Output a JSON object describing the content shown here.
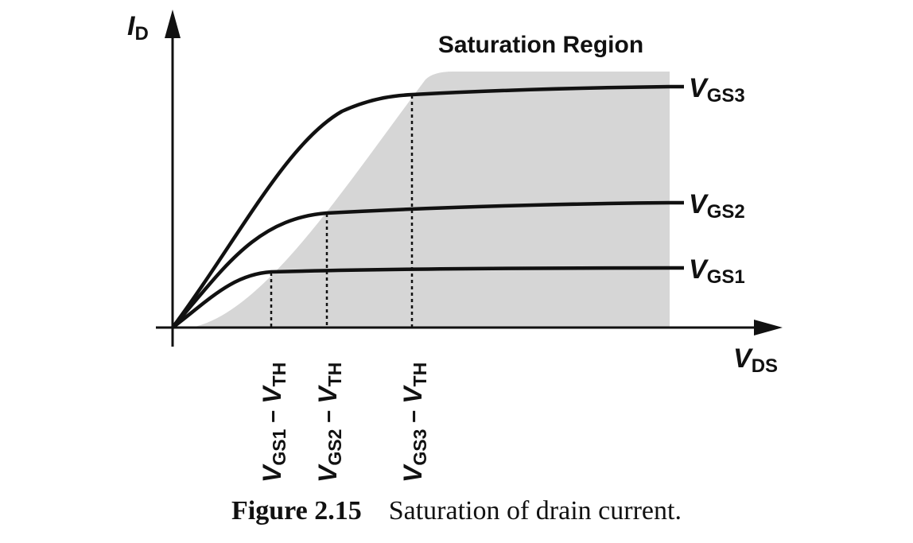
{
  "diagram": {
    "region_label": "Saturation Region",
    "axis_y": {
      "symbol": "I",
      "subscript": "D"
    },
    "axis_x": {
      "symbol": "V",
      "subscript": "DS"
    },
    "curves": [
      {
        "symbol": "V",
        "subscript": "GS3"
      },
      {
        "symbol": "V",
        "subscript": "GS2"
      },
      {
        "symbol": "V",
        "subscript": "GS1"
      }
    ],
    "ticks": [
      {
        "v1": "V",
        "s1": "GS1",
        "dash": " − ",
        "v2": "V",
        "s2": "TH"
      },
      {
        "v1": "V",
        "s1": "GS2",
        "dash": " − ",
        "v2": "V",
        "s2": "TH"
      },
      {
        "v1": "V",
        "s1": "GS3",
        "dash": " − ",
        "v2": "V",
        "s2": "TH"
      }
    ],
    "colors": {
      "region_fill": "#d6d6d6",
      "stroke": "#111111"
    }
  },
  "caption": {
    "number": "Figure 2.15",
    "text": "Saturation of drain current."
  }
}
